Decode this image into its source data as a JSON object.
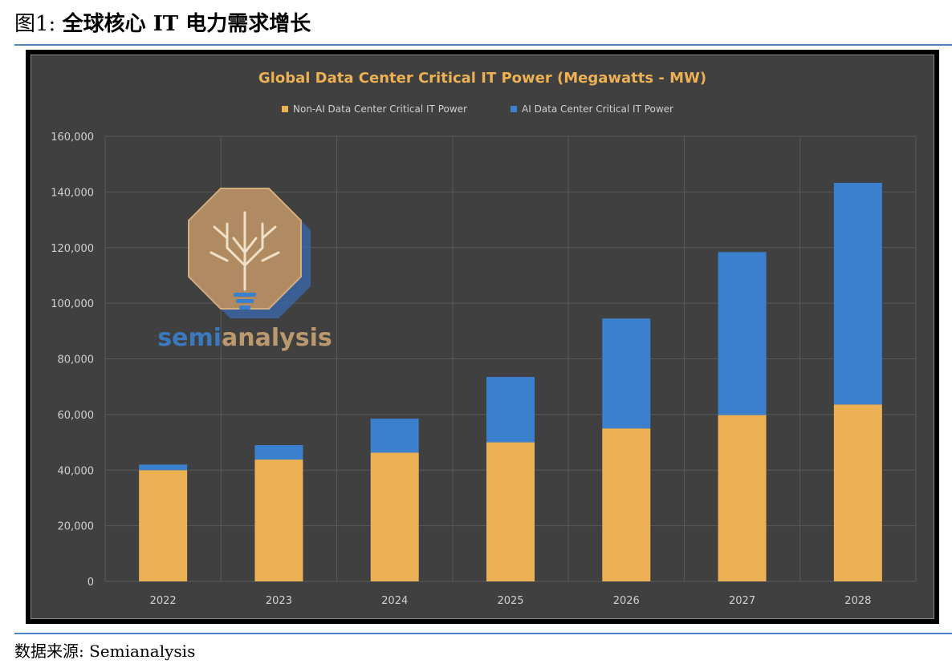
{
  "caption": {
    "number": "图1:",
    "title": "全球核心 IT 电力需求增长"
  },
  "source": "数据来源: Semianalysis",
  "watermark": {
    "text_left": "semi",
    "text_right": "analysis"
  },
  "colors": {
    "non_ai": "#ebb154",
    "ai": "#3a80cc",
    "plot_bg": "#404040",
    "grid": "#5a5a5a",
    "title": "#ebb154",
    "axis_text": "#d0d0d0",
    "caption_rule": "#4a86c5"
  },
  "chart_data": {
    "type": "bar",
    "stacked": true,
    "title": "Global Data Center Critical IT Power (Megawatts - MW)",
    "xlabel": "",
    "ylabel": "",
    "categories": [
      "2022",
      "2023",
      "2024",
      "2025",
      "2026",
      "2027",
      "2028"
    ],
    "series": [
      {
        "name": "Non-AI Data Center Critical IT Power",
        "values": [
          40000,
          43800,
          46300,
          50000,
          55000,
          59800,
          63600
        ]
      },
      {
        "name": "AI Data Center Critical IT Power",
        "values": [
          2000,
          5200,
          12200,
          23500,
          39500,
          58600,
          79700
        ]
      }
    ],
    "ylim": [
      0,
      160000
    ],
    "yticks": [
      0,
      20000,
      40000,
      60000,
      80000,
      100000,
      120000,
      140000,
      160000
    ],
    "ytick_labels": [
      "0",
      "20,000",
      "40,000",
      "60,000",
      "80,000",
      "100,000",
      "120,000",
      "140,000",
      "160,000"
    ],
    "grid": true,
    "legend_position": "top-center"
  }
}
